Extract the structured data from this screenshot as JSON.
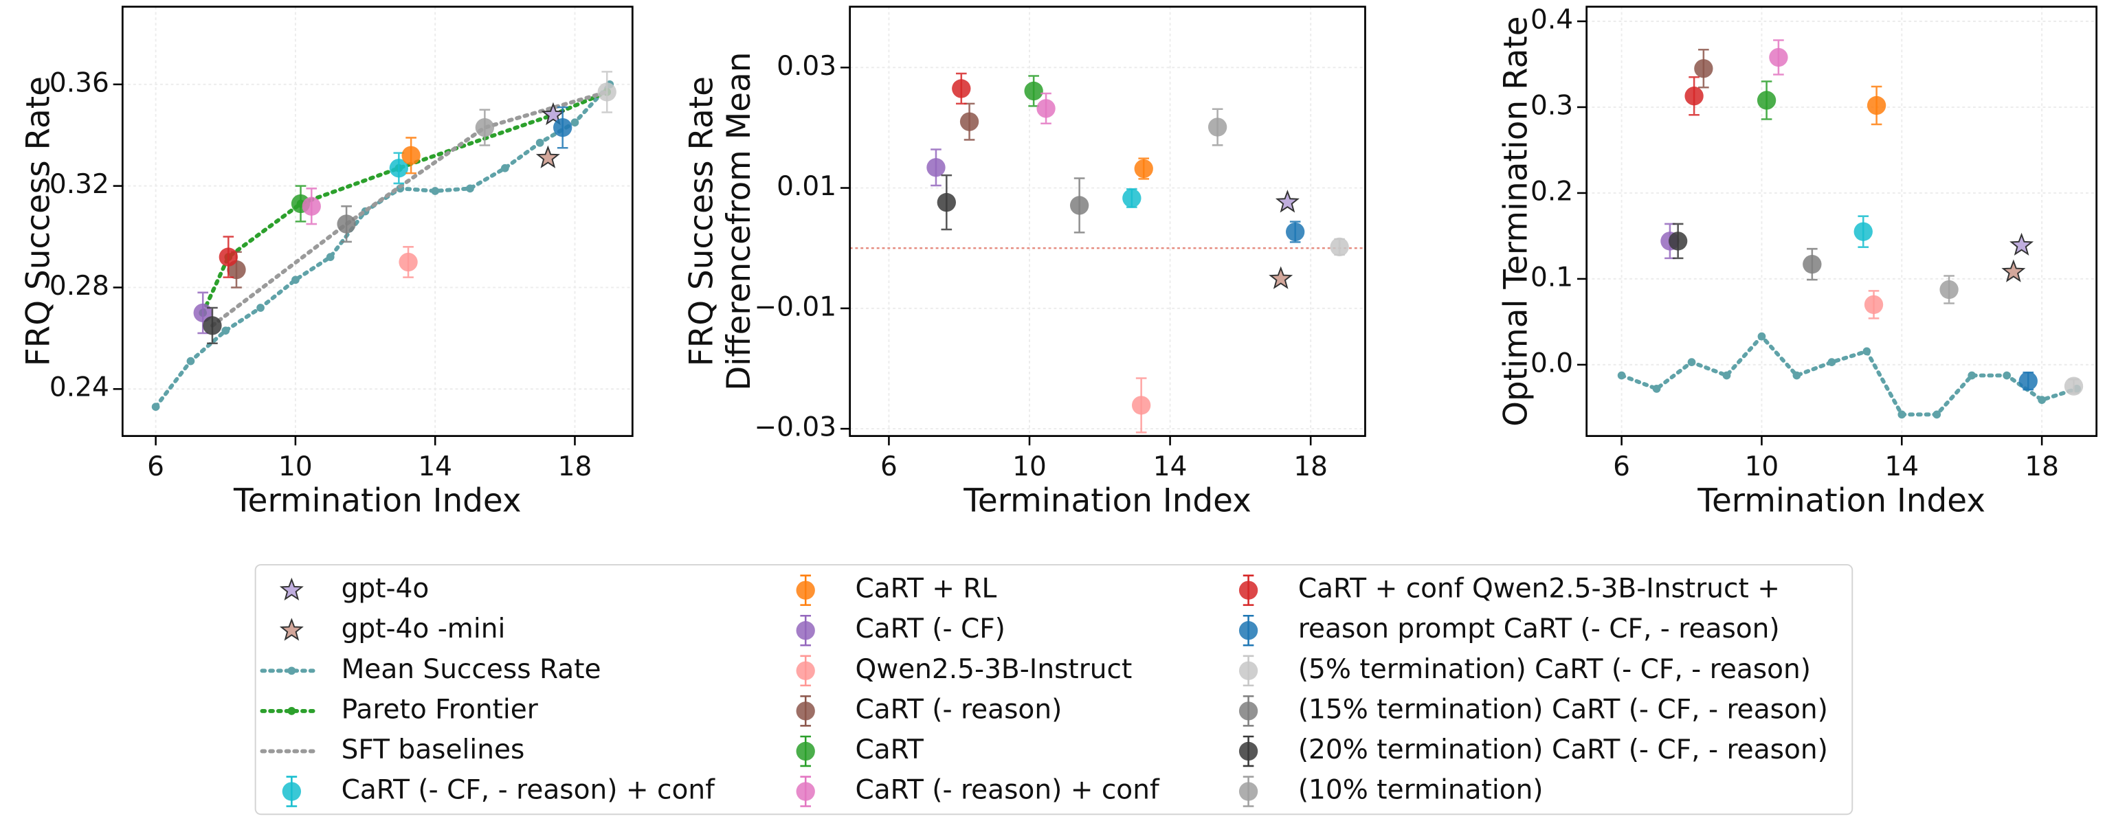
{
  "chart_data": [
    {
      "type": "scatter",
      "ylabel": "FRQ Success Rate",
      "xlabel": "Termination Index",
      "xlim": [
        5.05,
        19.65
      ],
      "ylim": [
        0.2215,
        0.3906
      ],
      "xticks": [
        6,
        10,
        14,
        18
      ],
      "yticks": [
        0.24,
        0.28,
        0.32,
        0.36
      ],
      "grid": true,
      "series": [
        {
          "name": "gpt-4o",
          "color": "#c0aede",
          "marker": "star",
          "x": [
            17.38
          ],
          "values": [
            0.348
          ]
        },
        {
          "name": "gpt-4o -mini",
          "color": "#d3a79b",
          "marker": "star",
          "x": [
            17.23
          ],
          "values": [
            0.331
          ]
        },
        {
          "name": "CaRT (- CF, - reason) + conf",
          "color": "#17becf",
          "marker": "circle",
          "x": [
            12.96
          ],
          "values": [
            0.327
          ],
          "errors": [
            0.006
          ]
        },
        {
          "name": "CaRT + RL",
          "color": "#ff7f0e",
          "marker": "circle",
          "x": [
            13.31
          ],
          "values": [
            0.332
          ],
          "errors": [
            0.007
          ]
        },
        {
          "name": "CaRT (- CF)",
          "color": "#9467bd",
          "marker": "circle",
          "x": [
            7.35
          ],
          "values": [
            0.27
          ],
          "errors": [
            0.008
          ]
        },
        {
          "name": "Qwen2.5-3B-Instruct",
          "color": "#ff9896",
          "marker": "circle",
          "x": [
            13.23
          ],
          "values": [
            0.29
          ],
          "errors": [
            0.006
          ]
        },
        {
          "name": "CaRT (- reason)",
          "color": "#8c564b",
          "marker": "circle",
          "x": [
            8.31
          ],
          "values": [
            0.287
          ],
          "errors": [
            0.007
          ]
        },
        {
          "name": "CaRT",
          "color": "#2ca02c",
          "marker": "circle",
          "x": [
            10.15
          ],
          "values": [
            0.313
          ],
          "errors": [
            0.007
          ]
        },
        {
          "name": "CaRT (- reason) + conf",
          "color": "#e377c2",
          "marker": "circle",
          "x": [
            10.46
          ],
          "values": [
            0.312
          ],
          "errors": [
            0.007
          ]
        },
        {
          "name": "CaRT + conf Qwen2.5-3B-Instruct +",
          "color": "#d62728",
          "marker": "circle",
          "x": [
            8.08
          ],
          "values": [
            0.292
          ],
          "errors": [
            0.008
          ]
        },
        {
          "name": "reason prompt CaRT (- CF, - reason)",
          "color": "#1f77b4",
          "marker": "circle",
          "x": [
            17.65
          ],
          "values": [
            0.343
          ],
          "errors": [
            0.008
          ]
        },
        {
          "name": "(5% termination) CaRT (- CF, - reason)",
          "color": "#c7c7c7",
          "marker": "circle",
          "x": [
            18.92
          ],
          "values": [
            0.357
          ],
          "errors": [
            0.008
          ]
        },
        {
          "name": "(15% termination) CaRT (- CF, - reason)",
          "color": "#7f7f7f",
          "marker": "circle",
          "x": [
            11.46
          ],
          "values": [
            0.305
          ],
          "errors": [
            0.007
          ]
        },
        {
          "name": "(20% termination) CaRT (- CF, - reason)",
          "color": "#3a3a3a",
          "marker": "circle",
          "x": [
            7.62
          ],
          "values": [
            0.265
          ],
          "errors": [
            0.007
          ]
        },
        {
          "name": "(10% termination)",
          "color": "#a0a0a0",
          "marker": "circle",
          "x": [
            15.42
          ],
          "values": [
            0.343
          ],
          "errors": [
            0.007
          ]
        }
      ],
      "lines": [
        {
          "name": "Mean Success Rate",
          "color": "#5fa2a8",
          "marker": "dot",
          "x": [
            6,
            7,
            8,
            9,
            10,
            11,
            12,
            13,
            14,
            15,
            16,
            17,
            18,
            19
          ],
          "values": [
            0.233,
            0.251,
            0.263,
            0.272,
            0.283,
            0.292,
            0.31,
            0.319,
            0.318,
            0.319,
            0.327,
            0.337,
            0.345,
            0.36
          ]
        },
        {
          "name": "Pareto Frontier",
          "color": "#2ca02c",
          "marker": "dot",
          "x": [
            7.35,
            8.08,
            10.15,
            12.96,
            17.38,
            18.92
          ],
          "values": [
            0.27,
            0.292,
            0.313,
            0.327,
            0.348,
            0.357
          ]
        },
        {
          "name": "SFT baselines",
          "color": "#9a9a9a",
          "marker": "none",
          "x": [
            7.62,
            11.46,
            15.42,
            18.92
          ],
          "values": [
            0.265,
            0.305,
            0.343,
            0.357
          ]
        }
      ]
    },
    {
      "type": "scatter",
      "ylabel": [
        "FRQ Success Rate",
        "Differencefrom Mean"
      ],
      "xlabel": "Termination Index",
      "xlim": [
        4.89,
        19.55
      ],
      "ylim": [
        -0.0312,
        0.0401
      ],
      "xticks": [
        6,
        10,
        14,
        18
      ],
      "yticks": [
        {
          "value": -0.03,
          "label": "−0.03"
        },
        {
          "value": -0.01,
          "label": "−0.01"
        },
        0.01,
        0.03
      ],
      "grid": true,
      "hline": {
        "value": 0,
        "color": "#e58a7e"
      },
      "series": [
        {
          "x": [
            17.34
          ],
          "values": [
            0.0076
          ]
        },
        {
          "x": [
            17.15
          ],
          "values": [
            -0.0051
          ]
        },
        {
          "x": [
            12.91
          ],
          "values": [
            0.0083
          ],
          "errors": [
            0.0015
          ]
        },
        {
          "x": [
            13.25
          ],
          "values": [
            0.0132
          ],
          "errors": [
            0.0017
          ]
        },
        {
          "x": [
            7.34
          ],
          "values": [
            0.0134
          ],
          "errors": [
            0.003
          ]
        },
        {
          "x": [
            13.18
          ],
          "values": [
            -0.0261
          ],
          "errors": [
            0.0045
          ]
        },
        {
          "x": [
            8.29
          ],
          "values": [
            0.021
          ],
          "errors": [
            0.003
          ]
        },
        {
          "x": [
            10.12
          ],
          "values": [
            0.0261
          ],
          "errors": [
            0.0025
          ]
        },
        {
          "x": [
            10.47
          ],
          "values": [
            0.0232
          ],
          "errors": [
            0.0025
          ]
        },
        {
          "x": [
            8.06
          ],
          "values": [
            0.0265
          ],
          "errors": [
            0.0025
          ]
        },
        {
          "x": [
            17.56
          ],
          "values": [
            0.0027
          ],
          "errors": [
            0.0017
          ]
        },
        {
          "x": [
            18.82
          ],
          "values": [
            0.0002
          ],
          "errors": [
            0.0013
          ]
        },
        {
          "x": [
            11.42
          ],
          "values": [
            0.0071
          ],
          "errors": [
            0.0045
          ]
        },
        {
          "x": [
            7.64
          ],
          "values": [
            0.0076
          ],
          "errors": [
            0.0045
          ]
        },
        {
          "x": [
            15.35
          ],
          "values": [
            0.0201
          ],
          "errors": [
            0.003
          ]
        }
      ]
    },
    {
      "type": "scatter",
      "ylabel": "Optimal Termination Rate",
      "xlabel": "Termination Index",
      "xlim": [
        5.0,
        19.56
      ],
      "ylim": [
        -0.083,
        0.417
      ],
      "xticks": [
        6,
        10,
        14,
        18
      ],
      "yticks": [
        {
          "value": 0,
          "label": "0.0"
        },
        0.1,
        0.2,
        0.3,
        0.4
      ],
      "grid": true,
      "series": [
        {
          "x": [
            17.42
          ],
          "values": [
            0.139
          ]
        },
        {
          "x": [
            17.19
          ],
          "values": [
            0.108
          ]
        },
        {
          "x": [
            12.9
          ],
          "values": [
            0.155
          ],
          "errors": [
            0.018
          ]
        },
        {
          "x": [
            13.28
          ],
          "values": [
            0.302
          ],
          "errors": [
            0.022
          ]
        },
        {
          "x": [
            7.38
          ],
          "values": [
            0.144
          ],
          "errors": [
            0.02
          ]
        },
        {
          "x": [
            13.2
          ],
          "values": [
            0.07
          ],
          "errors": [
            0.016
          ]
        },
        {
          "x": [
            8.34
          ],
          "values": [
            0.345
          ],
          "errors": [
            0.022
          ]
        },
        {
          "x": [
            10.14
          ],
          "values": [
            0.308
          ],
          "errors": [
            0.022
          ]
        },
        {
          "x": [
            10.48
          ],
          "values": [
            0.358
          ],
          "errors": [
            0.02
          ]
        },
        {
          "x": [
            8.07
          ],
          "values": [
            0.313
          ],
          "errors": [
            0.022
          ]
        },
        {
          "x": [
            17.61
          ],
          "values": [
            -0.019
          ],
          "errors": [
            0.01
          ]
        },
        {
          "x": [
            18.91
          ],
          "values": [
            -0.025
          ],
          "errors": [
            0.008
          ]
        },
        {
          "x": [
            11.44
          ],
          "values": [
            0.117
          ],
          "errors": [
            0.018
          ]
        },
        {
          "x": [
            7.61
          ],
          "values": [
            0.144
          ],
          "errors": [
            0.02
          ]
        },
        {
          "x": [
            15.35
          ],
          "values": [
            0.0875
          ],
          "errors": [
            0.016
          ]
        }
      ],
      "lines": [
        {
          "color": "#5fa2a8",
          "marker": "dot",
          "x": [
            6,
            7,
            8,
            9,
            10,
            11,
            12,
            13,
            14,
            15,
            16,
            17,
            18,
            19
          ],
          "values": [
            -0.0125,
            -0.028,
            0.003,
            -0.0125,
            0.033,
            -0.0125,
            0.003,
            0.0156,
            -0.058,
            -0.058,
            -0.0125,
            -0.0125,
            -0.041,
            -0.028
          ]
        }
      ]
    }
  ]
}
